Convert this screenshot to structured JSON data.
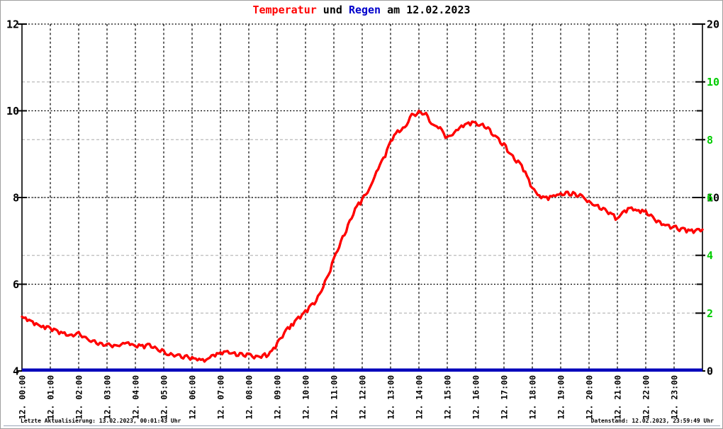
{
  "title": {
    "full": "Temperatur und Regen am 12.02.2023",
    "segments": [
      {
        "text": "Temperatur",
        "color": "#ff0000"
      },
      {
        "text": " und ",
        "color": "#000000"
      },
      {
        "text": "Regen",
        "color": "#0000cc"
      },
      {
        "text": " am 12.02.2023",
        "color": "#000000"
      }
    ]
  },
  "footer": {
    "left": "Letzte Aktualisierung: 13.02.2023, 00:01:43 Uhr",
    "right": "Datenstand: 12.02.2023, 23:59:49 Uhr"
  },
  "axes": {
    "y_left_temperature": {
      "min": 4,
      "max": 12,
      "tick_labels": [
        4,
        6,
        8,
        10,
        12
      ],
      "color": "#000000"
    },
    "y_right_rain_black": {
      "min": 0,
      "max": 20,
      "tick_labels": [
        0,
        10,
        20
      ],
      "color": "#000000"
    },
    "y_right_green": {
      "min": 0,
      "max": 12,
      "tick_labels": [
        2,
        4,
        6,
        8,
        10
      ],
      "color": "#00cc00"
    },
    "x_hour_labels": [
      "12. 00:00",
      "12. 01:00",
      "12. 02:00",
      "12. 03:00",
      "12. 04:00",
      "12. 05:00",
      "12. 06:00",
      "12. 07:00",
      "12. 08:00",
      "12. 09:00",
      "12. 10:00",
      "12. 11:00",
      "12. 12:00",
      "12. 13:00",
      "12. 14:00",
      "12. 15:00",
      "12. 16:00",
      "12. 17:00",
      "12. 18:00",
      "12. 19:00",
      "12. 20:00",
      "12. 21:00",
      "12. 22:00",
      "12. 23:00"
    ]
  },
  "colors": {
    "temperature_line": "#ff0000",
    "rain_line": "#0000bb",
    "grid_major_black": "#000000",
    "grid_minor_gray": "#c0c0c0",
    "green_axis_text": "#00cc00"
  },
  "chart_data": {
    "type": "line",
    "title": "Temperatur und Regen am 12.02.2023",
    "xlabel": "",
    "ylabel_left": "Temperatur",
    "ylabel_right": "Regen",
    "ylim_left": [
      4,
      12
    ],
    "ylim_right": [
      0,
      20
    ],
    "grid": true,
    "x": [
      "00:00",
      "00:15",
      "00:30",
      "00:45",
      "01:00",
      "01:15",
      "01:30",
      "01:45",
      "02:00",
      "02:15",
      "02:30",
      "02:45",
      "03:00",
      "03:15",
      "03:30",
      "03:45",
      "04:00",
      "04:15",
      "04:30",
      "04:45",
      "05:00",
      "05:15",
      "05:30",
      "05:45",
      "06:00",
      "06:15",
      "06:30",
      "06:45",
      "07:00",
      "07:15",
      "07:30",
      "07:45",
      "08:00",
      "08:15",
      "08:30",
      "08:45",
      "09:00",
      "09:15",
      "09:30",
      "09:45",
      "10:00",
      "10:15",
      "10:30",
      "10:45",
      "11:00",
      "11:15",
      "11:30",
      "11:45",
      "12:00",
      "12:15",
      "12:30",
      "12:45",
      "13:00",
      "13:15",
      "13:30",
      "13:45",
      "14:00",
      "14:15",
      "14:30",
      "14:45",
      "15:00",
      "15:15",
      "15:30",
      "15:45",
      "16:00",
      "16:15",
      "16:30",
      "16:45",
      "17:00",
      "17:15",
      "17:30",
      "17:45",
      "18:00",
      "18:15",
      "18:30",
      "18:45",
      "19:00",
      "19:15",
      "19:30",
      "19:45",
      "20:00",
      "20:15",
      "20:30",
      "20:45",
      "21:00",
      "21:15",
      "21:30",
      "21:45",
      "22:00",
      "22:15",
      "22:30",
      "22:45",
      "23:00",
      "23:15",
      "23:30",
      "23:45",
      "24:00"
    ],
    "series": [
      {
        "name": "Temperatur",
        "axis": "left",
        "color": "#ff0000",
        "values": [
          5.25,
          5.18,
          5.1,
          5.04,
          4.99,
          4.93,
          4.89,
          4.84,
          4.9,
          4.78,
          4.7,
          4.65,
          4.62,
          4.6,
          4.61,
          4.66,
          4.57,
          4.6,
          4.62,
          4.52,
          4.47,
          4.41,
          4.38,
          4.35,
          4.32,
          4.28,
          4.26,
          4.37,
          4.43,
          4.46,
          4.43,
          4.41,
          4.4,
          4.35,
          4.37,
          4.44,
          4.65,
          4.88,
          5.08,
          5.25,
          5.4,
          5.56,
          5.78,
          6.15,
          6.6,
          7.0,
          7.38,
          7.75,
          7.97,
          8.2,
          8.6,
          8.92,
          9.3,
          9.55,
          9.62,
          9.93,
          10.0,
          9.95,
          9.68,
          9.62,
          9.4,
          9.5,
          9.66,
          9.73,
          9.73,
          9.7,
          9.58,
          9.4,
          9.25,
          9.0,
          8.85,
          8.6,
          8.22,
          8.05,
          8.02,
          8.05,
          8.1,
          8.13,
          8.1,
          8.05,
          7.92,
          7.82,
          7.76,
          7.65,
          7.52,
          7.7,
          7.77,
          7.71,
          7.7,
          7.56,
          7.45,
          7.37,
          7.34,
          7.29,
          7.26,
          7.24,
          7.26
        ]
      },
      {
        "name": "Regen",
        "axis": "right",
        "color": "#0000bb",
        "values": [
          0,
          0,
          0,
          0,
          0,
          0,
          0,
          0,
          0,
          0,
          0,
          0,
          0,
          0,
          0,
          0,
          0,
          0,
          0,
          0,
          0,
          0,
          0,
          0,
          0,
          0,
          0,
          0,
          0,
          0,
          0,
          0,
          0,
          0,
          0,
          0,
          0,
          0,
          0,
          0,
          0,
          0,
          0,
          0,
          0,
          0,
          0,
          0,
          0,
          0,
          0,
          0,
          0,
          0,
          0,
          0,
          0,
          0,
          0,
          0,
          0,
          0,
          0,
          0,
          0,
          0,
          0,
          0,
          0,
          0,
          0,
          0,
          0,
          0,
          0,
          0,
          0,
          0,
          0,
          0,
          0,
          0,
          0,
          0,
          0,
          0,
          0,
          0,
          0,
          0,
          0,
          0,
          0,
          0,
          0,
          0,
          0
        ]
      }
    ]
  }
}
